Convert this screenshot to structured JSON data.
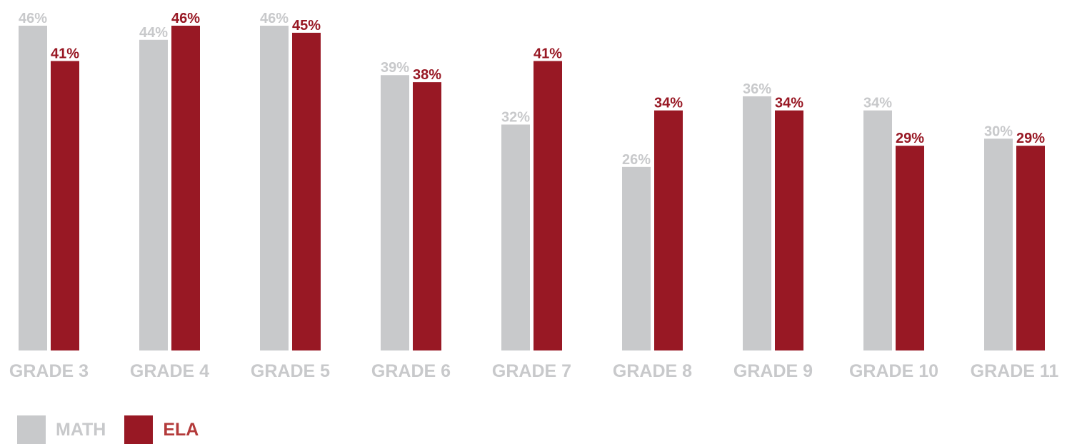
{
  "colors": {
    "math": "#c8c9cb",
    "ela": "#981824",
    "math_text": "#c8c9cb",
    "ela_text": "#981824",
    "ela_legend_text": "#b33a3a",
    "category_text": "#c8c9cb"
  },
  "legend": {
    "position": "bottom-left",
    "items": [
      {
        "name": "MATH",
        "color_key": "math"
      },
      {
        "name": "ELA",
        "color_key": "ela"
      }
    ]
  },
  "chart_data": {
    "type": "bar",
    "title": "",
    "xlabel": "",
    "ylabel": "",
    "ylim": [
      0,
      46
    ],
    "grid": false,
    "categories": [
      "GRADE 3",
      "GRADE 4",
      "GRADE 5",
      "GRADE 6",
      "GRADE 7",
      "GRADE 8",
      "GRADE 9",
      "GRADE 10",
      "GRADE 11"
    ],
    "series": [
      {
        "name": "MATH",
        "values": [
          46,
          44,
          46,
          39,
          32,
          26,
          36,
          34,
          30
        ],
        "labels": [
          "46%",
          "44%",
          "46%",
          "39%",
          "32%",
          "26%",
          "36%",
          "34%",
          "30%"
        ]
      },
      {
        "name": "ELA",
        "values": [
          41,
          46,
          45,
          38,
          41,
          34,
          34,
          29,
          29
        ],
        "labels": [
          "41%",
          "46%",
          "45%",
          "38%",
          "41%",
          "34%",
          "34%",
          "29%",
          "29%"
        ]
      }
    ]
  }
}
